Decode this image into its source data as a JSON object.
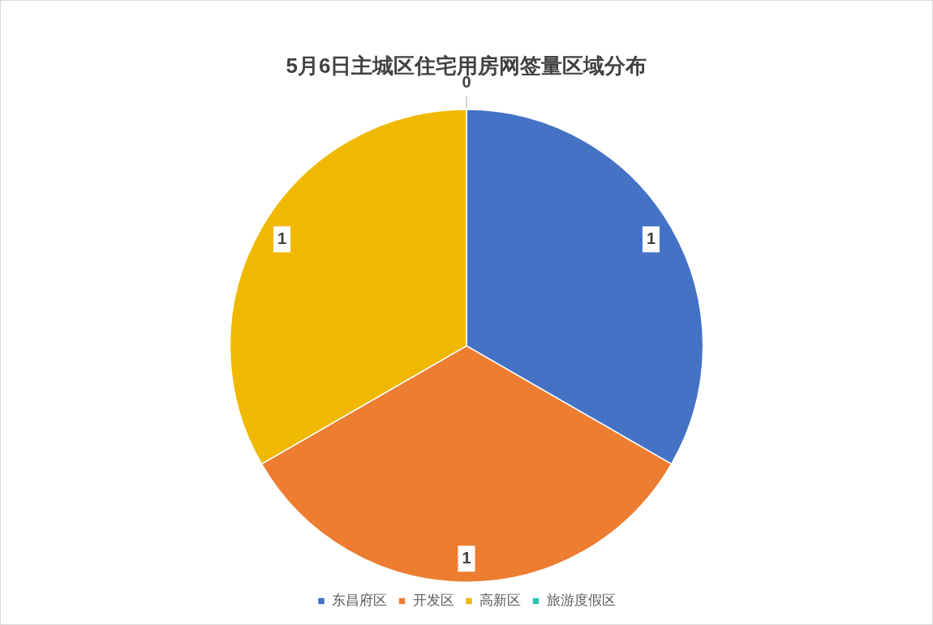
{
  "chart_data": {
    "type": "pie",
    "title": "5月6日主城区住宅用房网签量区域分布",
    "categories": [
      "东昌府区",
      "开发区",
      "高新区",
      "旅游度假区"
    ],
    "values": [
      1,
      1,
      1,
      0
    ],
    "value_labels": [
      "1",
      "1",
      "1",
      "0"
    ],
    "colors": [
      "#4472c4",
      "#ed7d31",
      "#f0b800",
      "#2ec4b0"
    ],
    "legend": "bottom"
  }
}
